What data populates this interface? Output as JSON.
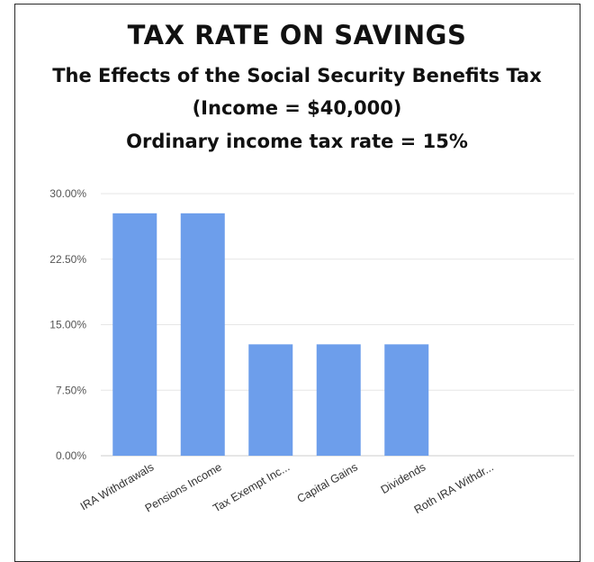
{
  "chart_data": {
    "type": "bar",
    "title": "TAX RATE ON SAVINGS",
    "subtitles": [
      "The Effects of the Social Security Benefits Tax",
      "(Income = $40,000)",
      "Ordinary income tax rate = 15%"
    ],
    "xlabel": "",
    "ylabel": "",
    "ylim": [
      0,
      30
    ],
    "y_ticks": [
      "0.00%",
      "7.50%",
      "15.00%",
      "22.50%",
      "30.00%"
    ],
    "y_tick_values": [
      0,
      7.5,
      15,
      22.5,
      30
    ],
    "categories": [
      "IRA Withdrawals",
      "Pensions Income",
      "Tax Exempt Inc...",
      "Capital Gains",
      "Dividends",
      "Roth IRA Withdr..."
    ],
    "values": [
      27.75,
      27.75,
      12.75,
      12.75,
      12.75,
      0
    ],
    "grid": true,
    "bar_color": "#6d9eeb",
    "grid_color": "#e6e6e6"
  }
}
